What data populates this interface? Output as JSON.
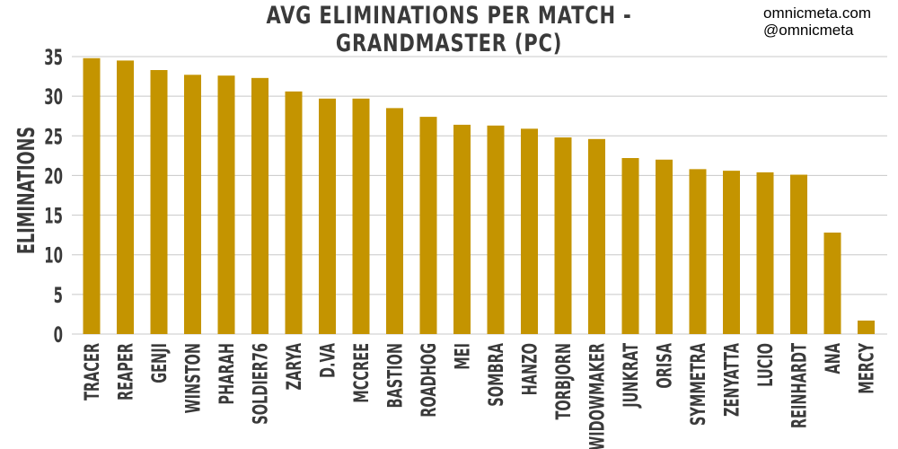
{
  "header": {
    "title": "AVG ELIMINATIONS PER MATCH - GRANDMASTER (PC)",
    "watermark_site": "omnicmeta.com",
    "watermark_handle": "@omnicmeta"
  },
  "colors": {
    "bar": "#c49400",
    "grid": "#c8c8c8",
    "text": "#3a3a3a"
  },
  "chart_data": {
    "type": "bar",
    "title": "AVG ELIMINATIONS PER MATCH - GRANDMASTER (PC)",
    "xlabel": "",
    "ylabel": "ELIMINATIONS",
    "ylim": [
      0,
      35
    ],
    "yticks": [
      0,
      5,
      10,
      15,
      20,
      25,
      30,
      35
    ],
    "grid": true,
    "categories": [
      "TRACER",
      "REAPER",
      "GENJI",
      "WINSTON",
      "PHARAH",
      "SOLDIER76",
      "ZARYA",
      "D.VA",
      "MCCREE",
      "BASTION",
      "ROADHOG",
      "MEI",
      "SOMBRA",
      "HANZO",
      "TORBJORN",
      "WIDOWMAKER",
      "JUNKRAT",
      "ORISA",
      "SYMMETRA",
      "ZENYATTA",
      "LUCIO",
      "REINHARDT",
      "ANA",
      "MERCY"
    ],
    "values": [
      34.8,
      34.5,
      33.3,
      32.7,
      32.6,
      32.3,
      30.6,
      29.7,
      29.7,
      28.5,
      27.4,
      26.4,
      26.3,
      25.9,
      24.8,
      24.6,
      22.2,
      22.0,
      20.8,
      20.6,
      20.4,
      20.1,
      12.8,
      1.7
    ]
  }
}
